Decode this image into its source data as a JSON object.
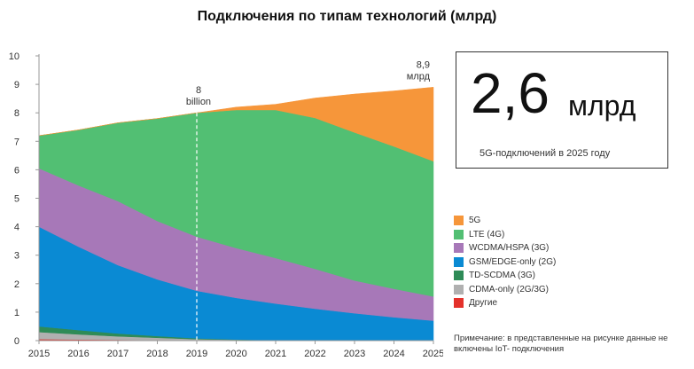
{
  "title": "Подключения по типам технологий (млрд)",
  "kpi": {
    "value": "2,6",
    "unit": "млрд",
    "caption": "5G-подключений в 2025 году"
  },
  "note": "Примечание: в представленные на рисунке данные не включены IoT- подключения",
  "chart_data": {
    "type": "area",
    "stacked": true,
    "x": [
      "2015",
      "2016",
      "2017",
      "2018",
      "2019",
      "2020",
      "2021",
      "2022",
      "2023",
      "2024",
      "2025"
    ],
    "ylim": [
      0,
      10
    ],
    "yticks": [
      "0",
      "1",
      "2",
      "3",
      "4",
      "5",
      "6",
      "7",
      "8",
      "9",
      "10"
    ],
    "grid": false,
    "legend_position": "right",
    "series": [
      {
        "name": "Другие",
        "color": "#e4312b",
        "values": [
          0.05,
          0.04,
          0.03,
          0.02,
          0.01,
          0.01,
          0,
          0,
          0,
          0,
          0
        ]
      },
      {
        "name": "CDMA-only (2G/3G)",
        "color": "#b0b0b0",
        "values": [
          0.25,
          0.18,
          0.12,
          0.08,
          0.04,
          0.02,
          0.01,
          0,
          0,
          0,
          0
        ]
      },
      {
        "name": "TD-SCDMA (3G)",
        "color": "#2e8b57",
        "values": [
          0.2,
          0.15,
          0.1,
          0.06,
          0.03,
          0.01,
          0,
          0,
          0,
          0,
          0
        ]
      },
      {
        "name": "GSM/EDGE-only (2G)",
        "color": "#0a8ad3",
        "values": [
          3.5,
          2.93,
          2.4,
          1.99,
          1.67,
          1.46,
          1.29,
          1.12,
          0.96,
          0.82,
          0.7
        ]
      },
      {
        "name": "WCDMA/HSPA (3G)",
        "color": "#a778b8",
        "values": [
          2.05,
          2.15,
          2.25,
          2.05,
          1.9,
          1.75,
          1.6,
          1.4,
          1.15,
          1.0,
          0.85
        ]
      },
      {
        "name": "LTE (4G)",
        "color": "#52bf73",
        "values": [
          1.15,
          1.95,
          2.75,
          3.6,
          4.35,
          4.85,
          5.2,
          5.3,
          5.2,
          5.0,
          4.75
        ]
      },
      {
        "name": "5G",
        "color": "#f6963a",
        "values": [
          0,
          0,
          0,
          0,
          0,
          0.1,
          0.2,
          0.7,
          1.35,
          1.95,
          2.6
        ]
      }
    ],
    "annotations": [
      {
        "x": "2019",
        "value": "8",
        "text": "billion"
      },
      {
        "x": "2025",
        "value": "8,9",
        "text": "млрд"
      }
    ]
  }
}
